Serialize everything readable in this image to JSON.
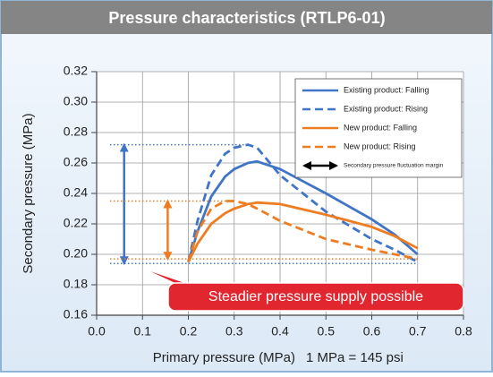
{
  "chart_data": {
    "type": "line",
    "title": "Pressure characteristics (RTLP6-01)",
    "x_label": "Primary pressure (MPa)",
    "x_note": "1 MPa = 145 psi",
    "y_label": "Secondary pressure (MPa)",
    "x": [
      0.2,
      0.22,
      0.25,
      0.28,
      0.3,
      0.33,
      0.35,
      0.4,
      0.5,
      0.6,
      0.65,
      0.7
    ],
    "series": [
      {
        "name": "Existing product: Falling",
        "color": "#3f74c6",
        "dash": false,
        "values": [
          0.195,
          0.215,
          0.238,
          0.251,
          0.256,
          0.26,
          0.261,
          0.256,
          0.24,
          0.223,
          0.213,
          0.2
        ]
      },
      {
        "name": "Existing product: Rising",
        "color": "#3f74c6",
        "dash": true,
        "values": [
          0.195,
          0.222,
          0.252,
          0.266,
          0.27,
          0.272,
          0.27,
          0.252,
          0.228,
          0.21,
          0.203,
          0.195
        ]
      },
      {
        "name": "New product: Falling",
        "color": "#ee7d22",
        "dash": false,
        "values": [
          0.195,
          0.207,
          0.22,
          0.227,
          0.23,
          0.233,
          0.234,
          0.233,
          0.226,
          0.218,
          0.212,
          0.204
        ]
      },
      {
        "name": "New product: Rising",
        "color": "#ee7d22",
        "dash": true,
        "values": [
          0.195,
          0.215,
          0.23,
          0.235,
          0.235,
          0.233,
          0.23,
          0.222,
          0.21,
          0.203,
          0.2,
          0.197
        ]
      }
    ],
    "margin_label": "Secondary pressure fluctuation margin",
    "margins": [
      {
        "color": "#3f74c6",
        "x": 0.06,
        "range": [
          0.194,
          0.272
        ]
      },
      {
        "color": "#ee7d22",
        "x": 0.155,
        "range": [
          0.197,
          0.235
        ]
      }
    ],
    "callout": "Steadier pressure supply possible",
    "xlim": [
      0,
      0.8
    ],
    "ylim": [
      0.16,
      0.32
    ],
    "xticks": [
      {
        "value": 0,
        "label": "0.0"
      },
      0.1,
      0.2,
      0.3,
      0.4,
      0.5,
      0.6,
      0.7,
      0.8
    ],
    "yticks": [
      0.16,
      0.18,
      {
        "value": 0.2,
        "label": "0.20"
      },
      0.22,
      0.24,
      0.26,
      0.28,
      {
        "value": 0.3,
        "label": "0.30"
      },
      0.32
    ],
    "grid": true,
    "legend": "upper right"
  }
}
